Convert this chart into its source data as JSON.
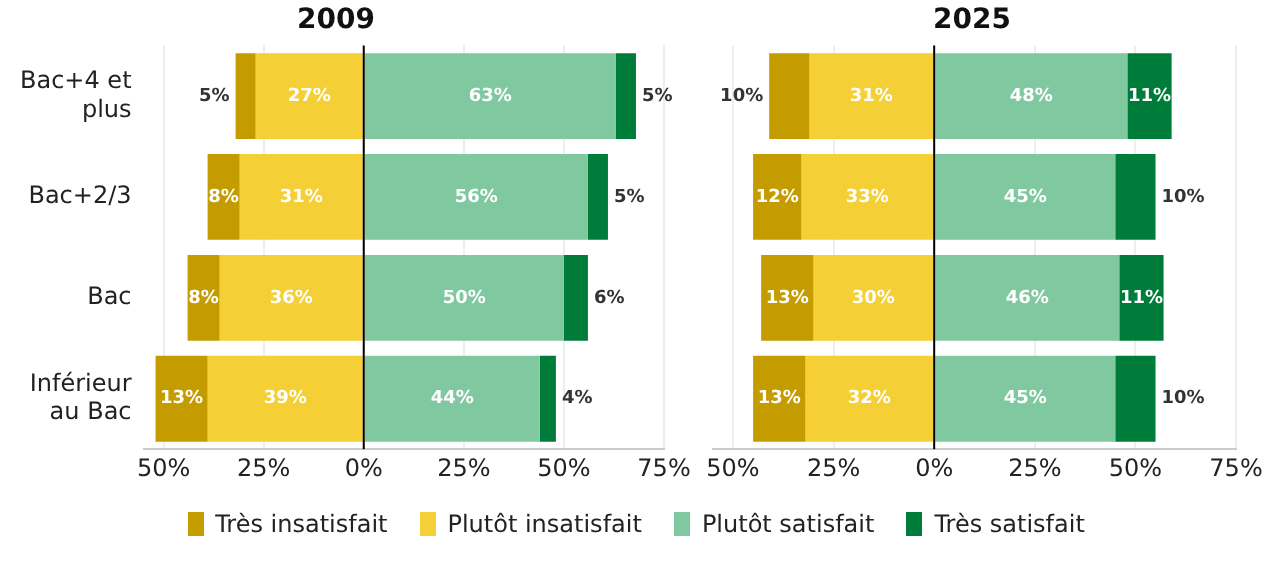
{
  "chart_data": [
    {
      "type": "bar",
      "orientation": "horizontal",
      "title": "2009",
      "categories": [
        "Bac+4 et plus",
        "Bac+2/3",
        "Bac",
        "Inférieur au Bac"
      ],
      "series": [
        {
          "name": "Très insatisfait",
          "color": "#c49c00",
          "values": [
            5,
            8,
            8,
            13
          ],
          "base": [
            -32,
            -39,
            -44,
            -52
          ],
          "value_labels": [
            "5%",
            "8%",
            "8%",
            "13%"
          ]
        },
        {
          "name": "Plutôt insatisfait",
          "color": "#f4cf35",
          "values": [
            27,
            31,
            36,
            39
          ],
          "base": [
            -27,
            -31,
            -36,
            -39
          ],
          "value_labels": [
            "27%",
            "31%",
            "36%",
            "39%"
          ]
        },
        {
          "name": "Plutôt satisfait",
          "color": "#80c9a0",
          "values": [
            63,
            56,
            50,
            44
          ],
          "base": [
            0,
            0,
            0,
            0
          ],
          "value_labels": [
            "63%",
            "56%",
            "50%",
            "44%"
          ]
        },
        {
          "name": "Très satisfait",
          "color": "#007c3a",
          "values": [
            5,
            5,
            6,
            4
          ],
          "base": [
            63,
            56,
            50,
            44
          ],
          "value_labels": [
            "5%",
            "5%",
            "6%",
            "4%"
          ]
        }
      ],
      "xlim": [
        -55,
        75
      ],
      "xticks": [
        {
          "value": -50,
          "label": "50%"
        },
        {
          "value": -25,
          "label": "25%"
        },
        {
          "value": 0,
          "label": "0%"
        },
        {
          "value": 25,
          "label": "25%"
        },
        {
          "value": 50,
          "label": "50%"
        },
        {
          "value": 75,
          "label": "75%"
        }
      ],
      "ref_lines": [
        {
          "axis": "x",
          "value": 0,
          "color": "#000000"
        }
      ],
      "grid": "x",
      "legend": "bottom"
    },
    {
      "type": "bar",
      "orientation": "horizontal",
      "title": "2025",
      "categories": [
        "Bac+4 et plus",
        "Bac+2/3",
        "Bac",
        "Inférieur au Bac"
      ],
      "series": [
        {
          "name": "Très insatisfait",
          "color": "#c49c00",
          "values": [
            10,
            12,
            13,
            13
          ],
          "base": [
            -41,
            -45,
            -43,
            -45
          ],
          "value_labels": [
            "10%",
            "12%",
            "13%",
            "13%"
          ]
        },
        {
          "name": "Plutôt insatisfait",
          "color": "#f4cf35",
          "values": [
            31,
            33,
            30,
            32
          ],
          "base": [
            -31,
            -33,
            -30,
            -32
          ],
          "value_labels": [
            "31%",
            "33%",
            "30%",
            "32%"
          ]
        },
        {
          "name": "Plutôt satisfait",
          "color": "#80c9a0",
          "values": [
            48,
            45,
            46,
            45
          ],
          "base": [
            0,
            0,
            0,
            0
          ],
          "value_labels": [
            "48%",
            "45%",
            "46%",
            "45%"
          ]
        },
        {
          "name": "Très satisfait",
          "color": "#007c3a",
          "values": [
            11,
            10,
            11,
            10
          ],
          "base": [
            48,
            45,
            46,
            45
          ],
          "value_labels": [
            "11%",
            "10%",
            "11%",
            "10%"
          ]
        }
      ],
      "xlim": [
        -55,
        75
      ],
      "xticks": [
        {
          "value": -50,
          "label": "50%"
        },
        {
          "value": -25,
          "label": "25%"
        },
        {
          "value": 0,
          "label": "0%"
        },
        {
          "value": 25,
          "label": "25%"
        },
        {
          "value": 50,
          "label": "50%"
        },
        {
          "value": 75,
          "label": "75%"
        }
      ],
      "ref_lines": [
        {
          "axis": "x",
          "value": 0,
          "color": "#000000"
        }
      ],
      "grid": "x",
      "tick_labels": "x"
    }
  ]
}
